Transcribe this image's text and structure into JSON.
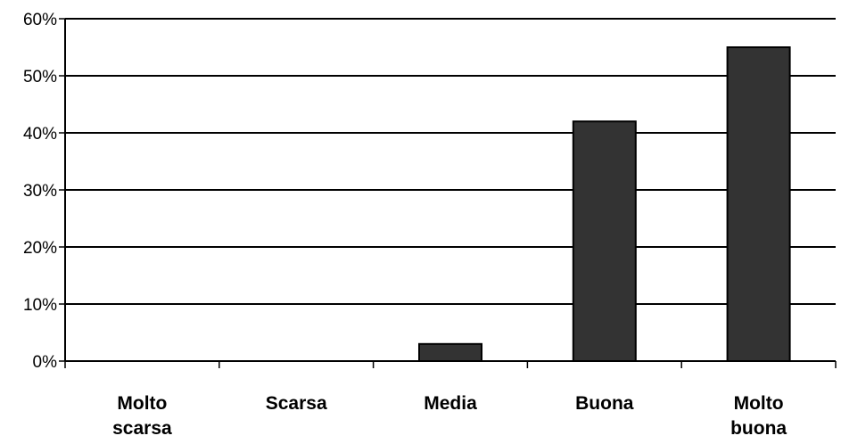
{
  "chart_data": {
    "type": "bar",
    "categories": [
      [
        "Molto",
        "scarsa"
      ],
      [
        "Scarsa"
      ],
      [
        "Media"
      ],
      [
        "Buona"
      ],
      [
        "Molto",
        "buona"
      ]
    ],
    "values": [
      0,
      0,
      3,
      42,
      55
    ],
    "ylim": [
      0,
      60
    ],
    "yticks": [
      0,
      10,
      20,
      30,
      40,
      50,
      60
    ],
    "ytick_labels": [
      "0%",
      "10%",
      "20%",
      "30%",
      "40%",
      "50%",
      "60%"
    ],
    "grid": true,
    "bar_color": "#333333",
    "title": "",
    "xlabel": "",
    "ylabel": ""
  }
}
